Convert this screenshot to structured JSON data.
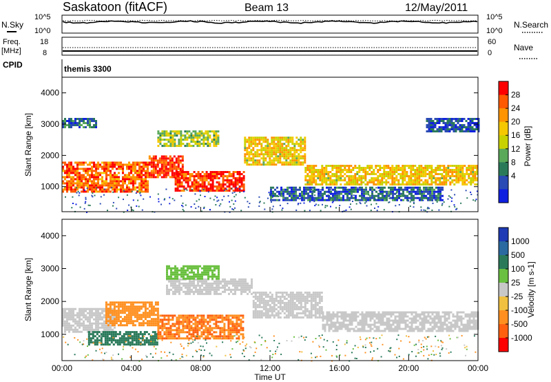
{
  "header": {
    "station": "Saskatoon (fitACF)",
    "beam": "Beam 13",
    "date": "12/May/2011"
  },
  "noise_panel": {
    "left_label": "N.Sky",
    "right_label": "N.Search",
    "left_ticks": [
      "10^5",
      "10^0"
    ],
    "right_ticks": [
      "10^5",
      "10^0"
    ]
  },
  "freq_panel": {
    "left_label_1": "Freq.",
    "left_label_2": "[MHz]",
    "right_label": "Nave",
    "left_ticks": [
      "18",
      "8"
    ],
    "right_ticks": [
      "60",
      "0"
    ]
  },
  "cpid_panel": {
    "label": "CPID",
    "program": "themis 3300"
  },
  "x_axis": {
    "label": "Time UT",
    "ticks": [
      "00:00",
      "04:00",
      "08:00",
      "12:00",
      "16:00",
      "20:00",
      "00:00"
    ]
  },
  "power_colorbar": {
    "label": "Power [dB]",
    "ticks": [
      "28",
      "24",
      "20",
      "16",
      "12",
      "8",
      "4"
    ],
    "colors": [
      "#ff0000",
      "#ff5a00",
      "#ff9400",
      "#f5c800",
      "#c8d200",
      "#5aa85a",
      "#2a7a5a",
      "#2a4ab4",
      "#1020e0"
    ]
  },
  "velocity_colorbar": {
    "label": "Velocity [m s-1]",
    "ticks": [
      "1000",
      "500",
      "100",
      "25",
      "-25",
      "-100",
      "-500",
      "-1000"
    ],
    "colors": [
      "#1e3ab4",
      "#2a6aa0",
      "#2a7a5a",
      "#6ac040",
      "#c8c8c8",
      "#f0c040",
      "#ff9020",
      "#ff6010",
      "#ff0000"
    ]
  },
  "chart_data": [
    {
      "type": "heatmap",
      "title": "Power",
      "xlabel": "Time UT",
      "ylabel": "Slant Range [km]",
      "xlim": [
        0,
        24
      ],
      "ylim": [
        200,
        4500
      ],
      "yticks": [
        1000,
        2000,
        3000,
        4000
      ],
      "colorbar": {
        "label": "Power [dB]",
        "range": [
          0,
          30
        ]
      },
      "regions": [
        {
          "t0": 0.0,
          "t1": 5.0,
          "r0": 850,
          "r1": 1800,
          "value": 24
        },
        {
          "t0": 5.0,
          "t1": 7.0,
          "r0": 1300,
          "r1": 2000,
          "value": 27
        },
        {
          "t0": 6.5,
          "t1": 10.5,
          "r0": 900,
          "r1": 1500,
          "value": 27
        },
        {
          "t0": 5.5,
          "t1": 9.0,
          "r0": 2300,
          "r1": 2800,
          "value": 14
        },
        {
          "t0": 10.5,
          "t1": 14.0,
          "r0": 1700,
          "r1": 2600,
          "value": 18
        },
        {
          "t0": 14.0,
          "t1": 24.0,
          "r0": 1100,
          "r1": 1700,
          "value": 18
        },
        {
          "t0": 0.0,
          "t1": 2.0,
          "r0": 2900,
          "r1": 3200,
          "value": 7
        },
        {
          "t0": 12.0,
          "t1": 22.0,
          "r0": 600,
          "r1": 1000,
          "value": 6
        },
        {
          "t0": 21.0,
          "t1": 24.0,
          "r0": 2800,
          "r1": 3200,
          "value": 5
        }
      ]
    },
    {
      "type": "heatmap",
      "title": "Velocity",
      "xlabel": "Time UT",
      "ylabel": "Slant Range [km]",
      "xlim": [
        0,
        24
      ],
      "ylim": [
        200,
        4500
      ],
      "yticks": [
        1000,
        2000,
        3000,
        4000
      ],
      "colorbar": {
        "label": "Velocity [m s-1]",
        "range": [
          -1000,
          1000
        ]
      },
      "regions": [
        {
          "t0": 0.0,
          "t1": 3.0,
          "r0": 1100,
          "r1": 1800,
          "value": 0
        },
        {
          "t0": 1.5,
          "t1": 5.5,
          "r0": 700,
          "r1": 1100,
          "value": 150
        },
        {
          "t0": 5.5,
          "t1": 10.5,
          "r0": 900,
          "r1": 1600,
          "value": -500
        },
        {
          "t0": 6.0,
          "t1": 11.0,
          "r0": 2200,
          "r1": 2700,
          "value": 0
        },
        {
          "t0": 11.0,
          "t1": 15.0,
          "r0": 1500,
          "r1": 2300,
          "value": 0
        },
        {
          "t0": 15.0,
          "t1": 24.0,
          "r0": 1100,
          "r1": 1700,
          "value": 0
        },
        {
          "t0": 2.5,
          "t1": 5.5,
          "r0": 1300,
          "r1": 2000,
          "value": -200
        },
        {
          "t0": 6.0,
          "t1": 9.0,
          "r0": 2700,
          "r1": 3100,
          "value": 40
        }
      ]
    }
  ]
}
